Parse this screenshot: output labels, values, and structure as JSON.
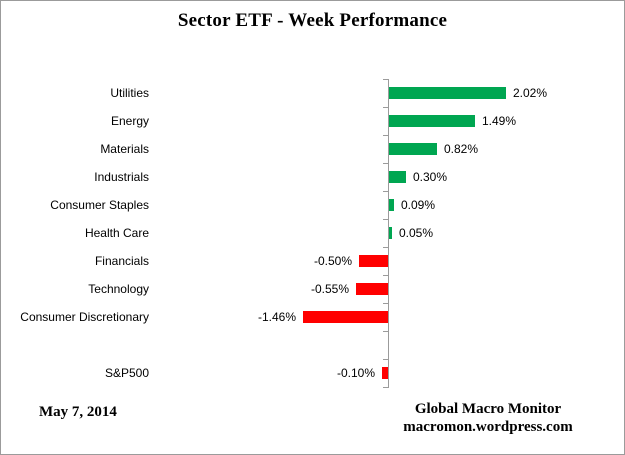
{
  "title": "Sector ETF - Week Performance",
  "chart_data": {
    "type": "bar",
    "orientation": "horizontal",
    "unit": "%",
    "categories": [
      "Utilities",
      "Energy",
      "Materials",
      "Industrials",
      "Consumer Staples",
      "Health Care",
      "Financials",
      "Technology",
      "Consumer Discretionary",
      "",
      "S&P500"
    ],
    "values": [
      2.02,
      1.49,
      0.82,
      0.3,
      0.09,
      0.05,
      -0.5,
      -0.55,
      -1.46,
      null,
      -0.1
    ],
    "value_labels": [
      "2.02%",
      "1.49%",
      "0.82%",
      "0.30%",
      "0.09%",
      "0.05%",
      "-0.50%",
      "-0.55%",
      "-1.46%",
      "",
      "-0.10%"
    ],
    "xlabel": "",
    "ylabel": "",
    "legend": "none",
    "grid": "off",
    "zero_baseline": true
  },
  "colors": {
    "positive_bar": "#00A651",
    "negative_bar": "#FF0000",
    "axis": "#9B9B9B"
  },
  "footer": {
    "date": "May 7, 2014",
    "source_line1": "Global Macro Monitor",
    "source_line2": "macromon.wordpress.com"
  }
}
